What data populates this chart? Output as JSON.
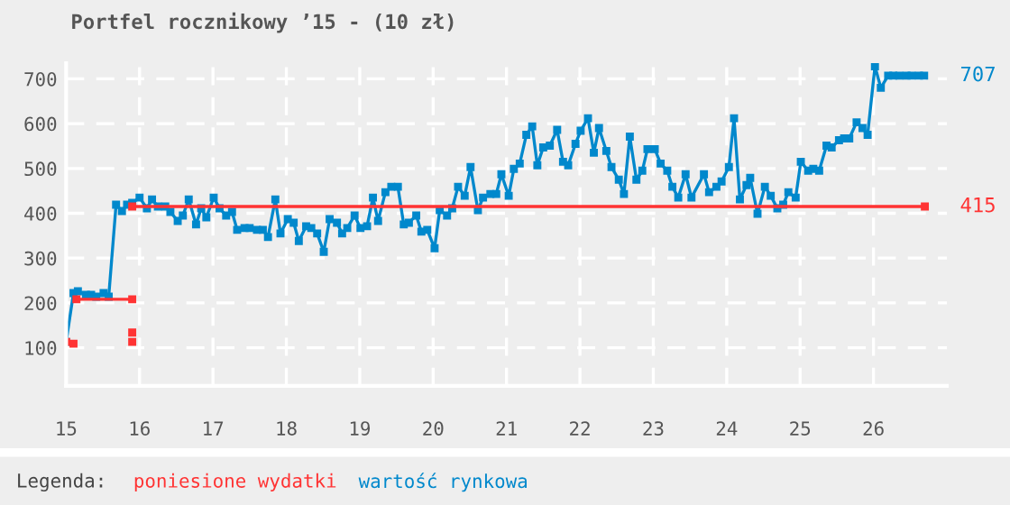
{
  "chart_data": {
    "type": "line",
    "title": "Portfel rocznikowy ’15 - (10 zł)",
    "legend_title": "Legenda:",
    "legend": "bottom",
    "grid": true,
    "line_style": "solid",
    "xlim": [
      15,
      27
    ],
    "ylim": [
      15,
      735
    ],
    "xticks": [
      15,
      16,
      17,
      18,
      19,
      20,
      21,
      22,
      23,
      24,
      25,
      26
    ],
    "yticks": [
      100,
      200,
      300,
      400,
      500,
      600,
      700
    ],
    "series": [
      {
        "name": "poniesione wydatki",
        "color": "#ff3333",
        "marker": "square",
        "x": [
          15.0,
          15.1,
          null,
          15.14,
          15.9,
          null,
          15.9,
          null,
          15.9,
          null,
          15.9,
          26.7
        ],
        "values": [
          113,
          109,
          null,
          208,
          208,
          null,
          134,
          null,
          113,
          null,
          415,
          415
        ]
      },
      {
        "name": "wartość rynkowa",
        "color": "#0088cc",
        "marker": "square",
        "x": [
          15.0,
          15.1,
          15.16,
          15.27,
          15.34,
          15.41,
          15.51,
          15.58,
          15.68,
          15.76,
          15.83,
          15.9,
          16.0,
          16.1,
          16.17,
          16.25,
          16.35,
          16.42,
          16.52,
          16.59,
          16.67,
          16.77,
          16.84,
          16.91,
          17.01,
          17.09,
          17.18,
          17.26,
          17.33,
          17.43,
          17.5,
          17.6,
          17.68,
          17.75,
          17.85,
          17.92,
          18.02,
          18.1,
          18.17,
          18.27,
          18.34,
          18.42,
          18.51,
          18.59,
          18.69,
          18.76,
          18.83,
          18.93,
          19.01,
          19.1,
          19.18,
          19.25,
          19.35,
          19.43,
          19.52,
          19.6,
          19.67,
          19.77,
          19.84,
          19.92,
          20.02,
          20.09,
          20.19,
          20.26,
          20.34,
          20.43,
          20.51,
          20.61,
          20.68,
          20.78,
          20.86,
          20.93,
          21.03,
          21.1,
          21.18,
          21.27,
          21.35,
          21.42,
          21.5,
          21.59,
          21.69,
          21.77,
          21.84,
          21.94,
          22.01,
          22.11,
          22.19,
          22.26,
          22.36,
          22.43,
          22.53,
          22.6,
          22.68,
          22.77,
          22.85,
          22.92,
          23.02,
          23.1,
          23.19,
          23.26,
          23.34,
          23.44,
          23.52,
          23.69,
          23.76,
          23.86,
          23.93,
          24.03,
          24.1,
          24.18,
          24.27,
          24.32,
          24.42,
          24.52,
          24.6,
          24.69,
          24.77,
          24.84,
          24.94,
          25.01,
          25.11,
          25.18,
          25.26,
          25.36,
          25.43,
          25.53,
          25.6,
          25.67,
          25.77,
          25.85,
          25.92,
          26.02,
          26.1,
          26.2,
          26.27,
          26.35,
          26.45,
          26.52,
          26.62,
          26.69
        ],
        "values": [
          113,
          222,
          226,
          218,
          218,
          214,
          222,
          214,
          419,
          405,
          419,
          423,
          435,
          411,
          431,
          415,
          415,
          403,
          383,
          395,
          431,
          375,
          411,
          391,
          435,
          411,
          395,
          403,
          363,
          367,
          367,
          363,
          363,
          347,
          431,
          355,
          387,
          379,
          338,
          371,
          367,
          355,
          314,
          387,
          379,
          355,
          367,
          395,
          367,
          371,
          435,
          383,
          447,
          459,
          459,
          375,
          379,
          395,
          359,
          363,
          322,
          407,
          395,
          411,
          459,
          439,
          503,
          407,
          435,
          443,
          443,
          487,
          439,
          499,
          511,
          575,
          594,
          507,
          547,
          551,
          586,
          515,
          507,
          555,
          584,
          612,
          535,
          590,
          539,
          503,
          475,
          443,
          571,
          475,
          495,
          543,
          543,
          511,
          495,
          459,
          435,
          487,
          435,
          487,
          447,
          459,
          471,
          503,
          612,
          431,
          463,
          479,
          399,
          459,
          439,
          411,
          419,
          447,
          435,
          515,
          495,
          499,
          495,
          551,
          547,
          563,
          567,
          567,
          603,
          590,
          575,
          728,
          680,
          707,
          707,
          707,
          707,
          707,
          707,
          707
        ]
      }
    ],
    "annotations": [
      {
        "text": "707",
        "x": 26.7,
        "y": 707
      },
      {
        "text": "415",
        "x": 26.7,
        "y": 415
      }
    ]
  }
}
